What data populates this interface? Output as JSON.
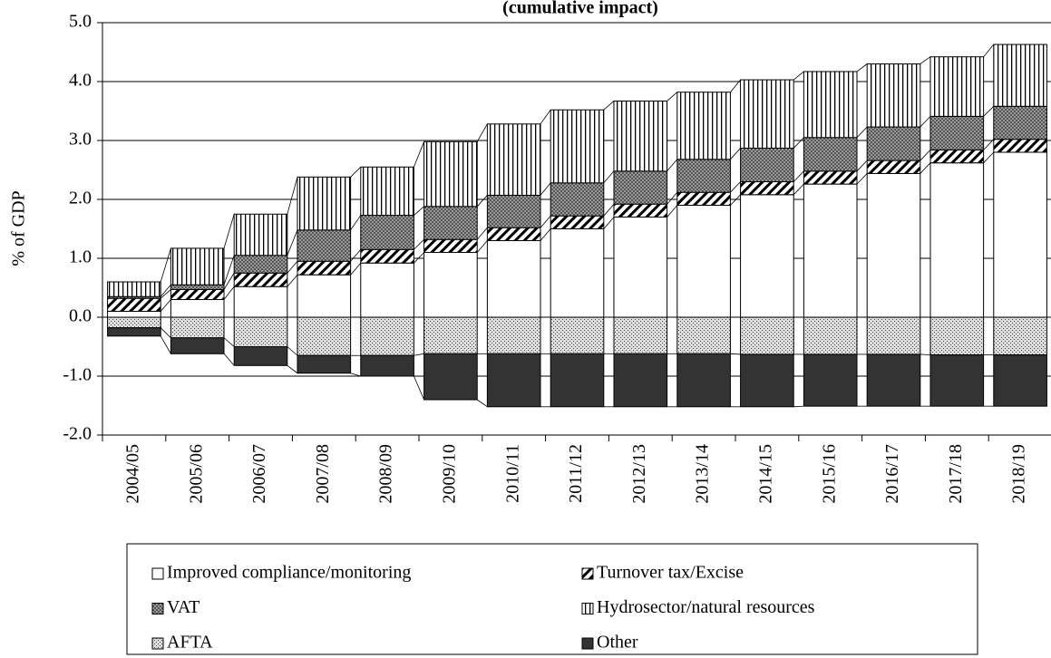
{
  "chart_data": {
    "type": "stacked-bar",
    "title": "(cumulative impact)",
    "y_label": "% of GDP",
    "categories": [
      "2004/05",
      "2005/06",
      "2006/07",
      "2007/08",
      "2008/09",
      "2009/10",
      "2010/11",
      "2011/12",
      "2012/13",
      "2013/14",
      "2014/15",
      "2015/16",
      "2016/17",
      "2017/18",
      "2018/19"
    ],
    "series": [
      {
        "name": "Improved compliance/monitoring",
        "color": "#ffffff",
        "pattern": "solid",
        "values": [
          0.1,
          0.3,
          0.52,
          0.72,
          0.92,
          1.1,
          1.3,
          1.5,
          1.7,
          1.9,
          2.08,
          2.26,
          2.44,
          2.62,
          2.8
        ]
      },
      {
        "name": "Turnover tax/Excise",
        "color": "#ffffff",
        "pattern": "diagonal",
        "values": [
          0.22,
          0.17,
          0.23,
          0.23,
          0.23,
          0.22,
          0.22,
          0.22,
          0.22,
          0.22,
          0.22,
          0.22,
          0.22,
          0.22,
          0.22
        ]
      },
      {
        "name": "VAT",
        "color": "#808080",
        "pattern": "crosshatch",
        "values": [
          0.03,
          0.08,
          0.3,
          0.53,
          0.58,
          0.56,
          0.55,
          0.56,
          0.56,
          0.56,
          0.57,
          0.57,
          0.57,
          0.57,
          0.56
        ]
      },
      {
        "name": "Hydrosector/natural resources",
        "color": "#ffffff",
        "pattern": "vertical",
        "values": [
          0.25,
          0.62,
          0.7,
          0.9,
          0.82,
          1.1,
          1.21,
          1.24,
          1.19,
          1.14,
          1.16,
          1.12,
          1.07,
          1.01,
          1.05
        ]
      },
      {
        "name": "AFTA",
        "color": "#c0c0c0",
        "pattern": "dots",
        "values": [
          -0.18,
          -0.35,
          -0.5,
          -0.65,
          -0.65,
          -0.62,
          -0.62,
          -0.62,
          -0.62,
          -0.62,
          -0.63,
          -0.63,
          -0.63,
          -0.64,
          -0.64
        ]
      },
      {
        "name": "Other",
        "color": "#333333",
        "pattern": "solid",
        "values": [
          -0.14,
          -0.27,
          -0.32,
          -0.3,
          -0.35,
          -0.78,
          -0.9,
          -0.9,
          -0.9,
          -0.9,
          -0.89,
          -0.88,
          -0.88,
          -0.87,
          -0.87
        ]
      }
    ],
    "ylim": [
      -2,
      5
    ],
    "yticks": [
      {
        "value": -2,
        "label": "-2.0"
      },
      {
        "value": -1,
        "label": "-1.0"
      },
      {
        "value": 0,
        "label": "0.0"
      },
      {
        "value": 1,
        "label": "1.0"
      },
      {
        "value": 2,
        "label": "2.0"
      },
      {
        "value": 3,
        "label": "3.0"
      },
      {
        "value": 4,
        "label": "4.0"
      },
      {
        "value": 5,
        "label": "5.0"
      }
    ],
    "grid": true,
    "legend": "bottom"
  }
}
